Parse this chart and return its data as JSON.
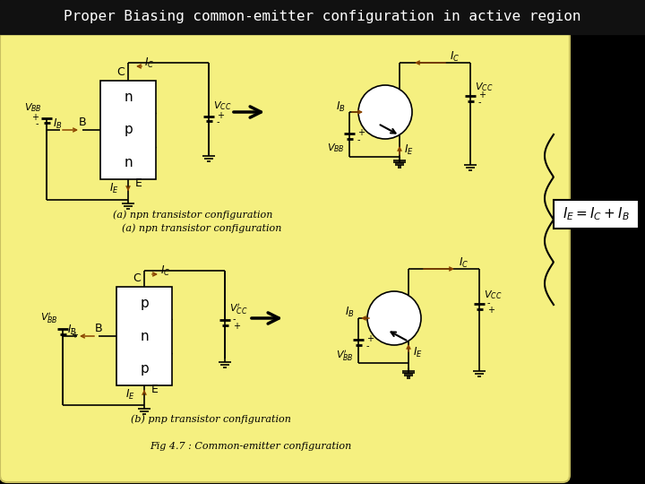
{
  "title": "Proper Biasing common-emitter configuration in active region",
  "title_bg": "#111111",
  "title_color": "#ffffff",
  "main_bg": "#f5f080",
  "caption_a": "(a) npn transistor configuration",
  "caption_b": "(b) pnp transistor configuration",
  "fig_caption": "Fig 4.7 : Common-emitter configuration",
  "arrow_color": "#8B4500",
  "dark_arrow_color": "#8B3A00"
}
